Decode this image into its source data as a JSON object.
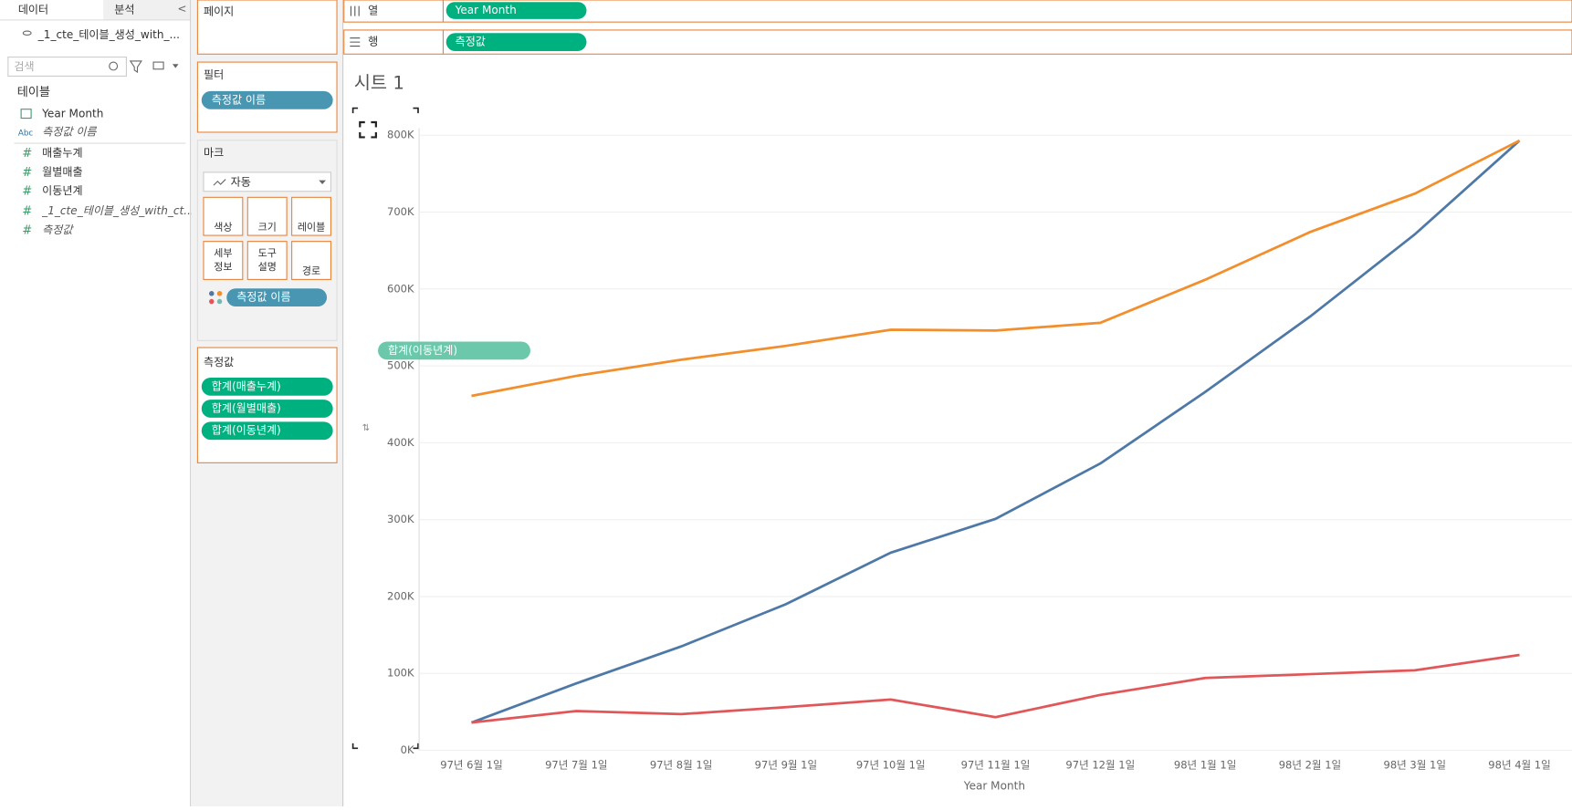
{
  "sidebar": {
    "tabs": [
      "데이터",
      "분석"
    ],
    "collapse": "<",
    "datasource": "_1_cte_테이블_생성_with_...",
    "search_placeholder": "검색",
    "section": "테이블",
    "abc_icon": "Abc",
    "fields": [
      "Year Month",
      "측정값 이름",
      "매출누계",
      "월별매출",
      "이동년계",
      "_1_cte_테이블_생성_with_ct...",
      "측정값"
    ]
  },
  "shelves": {
    "pages": "페이지",
    "columns_label": "열",
    "columns_pill": "Year Month",
    "rows_label": "행",
    "rows_pill": "측정값"
  },
  "filters": {
    "title": "필터",
    "pill": "측정값 이름"
  },
  "marks": {
    "title": "마크",
    "type": "자동",
    "buttons": [
      [
        "색상"
      ],
      [
        "크기"
      ],
      [
        "레이블"
      ],
      [
        "세부",
        "정보"
      ],
      [
        "도구",
        "설명"
      ],
      [
        "경로"
      ]
    ],
    "color_pill": "측정값 이름"
  },
  "measure_values": {
    "title": "측정값",
    "pills": [
      "합계(매출누계)",
      "합계(월별매출)",
      "합계(이동년계)"
    ]
  },
  "drag_pill": "합계(이동년계)",
  "chart_data": {
    "type": "line",
    "title": "시트 1",
    "x_label": "Year Month",
    "categories": [
      "97년 6월 1일",
      "97년 7월 1일",
      "97년 8월 1일",
      "97년 9월 1일",
      "97년 10월 1일",
      "97년 11월 1일",
      "97년 12월 1일",
      "98년 1월 1일",
      "98년 2월 1일",
      "98년 3월 1일",
      "98년 4월 1일"
    ],
    "series": [
      {
        "color": "#4e79a7",
        "values": [
          36000,
          87000,
          135000,
          190000,
          257000,
          301000,
          373000,
          466000,
          564000,
          671000,
          793000
        ]
      },
      {
        "color": "#e15759",
        "values": [
          36000,
          51000,
          47000,
          56000,
          66000,
          43000,
          72000,
          94000,
          99000,
          104000,
          124000
        ]
      },
      {
        "color": "#f28e2b",
        "values": [
          461000,
          487000,
          508000,
          526000,
          547000,
          546000,
          556000,
          612000,
          674000,
          724000,
          793000
        ]
      }
    ],
    "ylim": [
      0,
      800000
    ],
    "yticks": [
      {
        "value": 0,
        "label": "0K"
      },
      {
        "value": 100000,
        "label": "100K"
      },
      {
        "value": 200000,
        "label": "200K"
      },
      {
        "value": 300000,
        "label": "300K"
      },
      {
        "value": 400000,
        "label": "400K"
      },
      {
        "value": 500000,
        "label": "500K"
      },
      {
        "value": 600000,
        "label": "600K"
      },
      {
        "value": 700000,
        "label": "700K"
      },
      {
        "value": 800000,
        "label": "800K"
      }
    ],
    "grid": true
  }
}
